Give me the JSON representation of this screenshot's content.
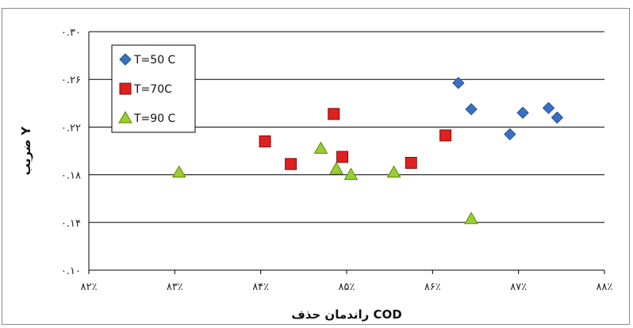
{
  "chart_data": {
    "type": "scatter",
    "title": "",
    "xlabel": "راندمان حذف COD",
    "ylabel": "ضریب Y",
    "xlim": [
      82,
      88
    ],
    "ylim": [
      0.1,
      0.3
    ],
    "xticks": [
      82,
      83,
      84,
      85,
      86,
      87,
      88
    ],
    "xtick_labels": [
      "۸۲٪",
      "۸۳٪",
      "۸۴٪",
      "۸۵٪",
      "۸۶٪",
      "۸۷٪",
      "۸۸٪"
    ],
    "yticks": [
      0.1,
      0.14,
      0.18,
      0.22,
      0.26,
      0.3
    ],
    "ytick_labels": [
      "۰.۱۰",
      "۰.۱۴",
      "۰.۱۸",
      "۰.۲۲",
      "۰.۲۶",
      "۰.۳۰"
    ],
    "grid": "horizontal",
    "legend_position": "top-left",
    "series": [
      {
        "name": "T=50 C",
        "marker": "diamond",
        "color": "#3a6fc4",
        "points": [
          [
            86.3,
            0.257
          ],
          [
            86.45,
            0.235
          ],
          [
            86.9,
            0.214
          ],
          [
            87.05,
            0.232
          ],
          [
            87.35,
            0.236
          ],
          [
            87.45,
            0.228
          ]
        ]
      },
      {
        "name": "T=70C",
        "marker": "square",
        "color": "#e02020",
        "points": [
          [
            84.05,
            0.208
          ],
          [
            84.35,
            0.189
          ],
          [
            84.85,
            0.231
          ],
          [
            84.95,
            0.195
          ],
          [
            85.75,
            0.19
          ],
          [
            86.15,
            0.213
          ]
        ]
      },
      {
        "name": "T=90 C",
        "marker": "triangle",
        "color": "#9acd32",
        "points": [
          [
            83.05,
            0.182
          ],
          [
            84.7,
            0.202
          ],
          [
            84.88,
            0.185
          ],
          [
            85.05,
            0.18
          ],
          [
            85.55,
            0.182
          ],
          [
            86.45,
            0.143
          ]
        ]
      }
    ]
  }
}
